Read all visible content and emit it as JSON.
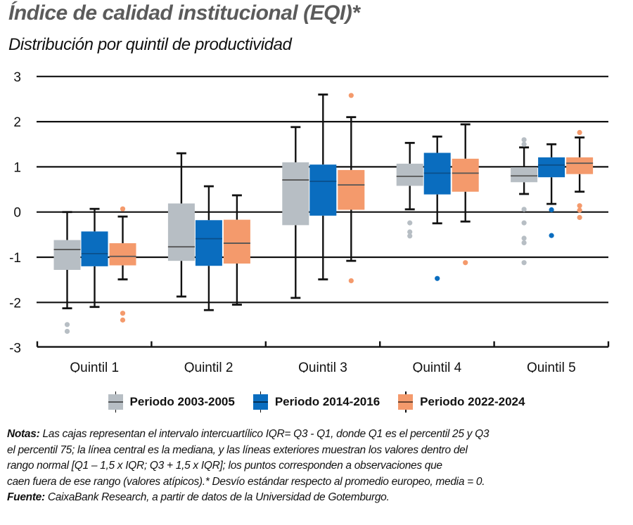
{
  "header": {
    "title": "Índice de calidad institucional (EQI)*",
    "subtitle": "Distribución por quintil de productividad"
  },
  "colors": {
    "period_2003_2005": "#b7bec4",
    "period_2014_2016": "#0a6dbf",
    "period_2022_2024": "#f49a6c",
    "median_line": "#555555",
    "axis": "#111111"
  },
  "legend": {
    "items": [
      {
        "label": "Periodo 2003-2005",
        "color": "#b7bec4"
      },
      {
        "label": "Periodo 2014-2016",
        "color": "#0a6dbf"
      },
      {
        "label": "Periodo 2022-2024",
        "color": "#f49a6c"
      }
    ]
  },
  "notes": {
    "notes_label": "Notas:",
    "line1": " Las cajas representan el intervalo intercuartílico IQR= Q3 - Q1, donde Q1 es el percentil 25 y Q3",
    "line2": " el percentil 75; la línea central es la mediana, y las líneas exteriores muestran los valores dentro del",
    "line3": "rango normal [Q1 – 1,5 x IQR; Q3 + 1,5 x IQR]; los puntos corresponden a observaciones que",
    "line4": "caen fuera de ese rango (valores atípicos).* Desvío estándar respecto al promedio europeo, media = 0.",
    "source_label": "Fuente:",
    "source": " CaixaBank Research, a partir de datos de la Universidad de Gotemburgo."
  },
  "chart_data": {
    "type": "boxplot",
    "title": "Índice de calidad institucional (EQI)*",
    "subtitle": "Distribución por quintil de productividad",
    "xlabel": "",
    "ylabel": "",
    "ylim": [
      -3,
      3
    ],
    "yticks": [
      3,
      2,
      1,
      0,
      -1,
      -2,
      -3
    ],
    "grid": true,
    "legend_position": "bottom",
    "categories": [
      "Quintil 1",
      "Quintil 2",
      "Quintil 3",
      "Quintil 4",
      "Quintil 5"
    ],
    "series": [
      {
        "name": "Periodo 2003-2005",
        "color": "#b7bec4",
        "boxes": [
          {
            "whisker_low": -2.13,
            "q1": -1.28,
            "median": -0.83,
            "q3": -0.62,
            "whisker_high": 0.0,
            "outliers": [
              -2.49,
              -2.64
            ]
          },
          {
            "whisker_low": -1.87,
            "q1": -1.08,
            "median": -0.77,
            "q3": 0.19,
            "whisker_high": 1.3,
            "outliers": []
          },
          {
            "whisker_low": -1.9,
            "q1": -0.29,
            "median": 0.71,
            "q3": 1.1,
            "whisker_high": 1.88,
            "outliers": []
          },
          {
            "whisker_low": 0.06,
            "q1": 0.58,
            "median": 0.79,
            "q3": 1.07,
            "whisker_high": 1.53,
            "outliers": [
              -0.24,
              -0.44,
              -0.53
            ]
          },
          {
            "whisker_low": 0.4,
            "q1": 0.66,
            "median": 0.8,
            "q3": 0.99,
            "whisker_high": 1.43,
            "outliers": [
              1.6,
              1.5,
              0.06,
              -0.24,
              -0.58,
              -0.68,
              -1.12
            ]
          }
        ]
      },
      {
        "name": "Periodo 2014-2016",
        "color": "#0a6dbf",
        "boxes": [
          {
            "whisker_low": -2.1,
            "q1": -1.2,
            "median": -0.92,
            "q3": -0.43,
            "whisker_high": 0.07,
            "outliers": []
          },
          {
            "whisker_low": -2.17,
            "q1": -1.19,
            "median": -0.59,
            "q3": -0.18,
            "whisker_high": 0.57,
            "outliers": []
          },
          {
            "whisker_low": -1.49,
            "q1": -0.08,
            "median": 0.68,
            "q3": 1.05,
            "whisker_high": 2.6,
            "outliers": []
          },
          {
            "whisker_low": -0.25,
            "q1": 0.39,
            "median": 0.86,
            "q3": 1.31,
            "whisker_high": 1.67,
            "outliers": [
              -1.47
            ]
          },
          {
            "whisker_low": 0.18,
            "q1": 0.77,
            "median": 1.04,
            "q3": 1.21,
            "whisker_high": 1.5,
            "outliers": [
              0.05,
              -0.52
            ]
          }
        ]
      },
      {
        "name": "Periodo 2022-2024",
        "color": "#f49a6c",
        "boxes": [
          {
            "whisker_low": -1.49,
            "q1": -1.18,
            "median": -0.98,
            "q3": -0.69,
            "whisker_high": -0.1,
            "outliers": [
              0.07,
              -2.24,
              -2.39
            ]
          },
          {
            "whisker_low": -2.05,
            "q1": -1.14,
            "median": -0.69,
            "q3": -0.17,
            "whisker_high": 0.37,
            "outliers": []
          },
          {
            "whisker_low": -1.08,
            "q1": 0.05,
            "median": 0.6,
            "q3": 0.93,
            "whisker_high": 2.1,
            "outliers": [
              2.58,
              -1.52
            ]
          },
          {
            "whisker_low": -0.21,
            "q1": 0.45,
            "median": 0.86,
            "q3": 1.18,
            "whisker_high": 1.94,
            "outliers": [
              -1.12
            ]
          },
          {
            "whisker_low": 0.45,
            "q1": 0.84,
            "median": 1.08,
            "q3": 1.21,
            "whisker_high": 1.65,
            "outliers": [
              1.76,
              0.14,
              0.04,
              -0.12
            ]
          }
        ]
      }
    ]
  }
}
